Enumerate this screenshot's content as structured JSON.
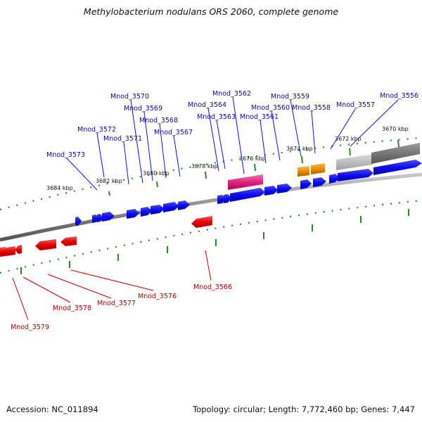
{
  "title": "Methylobacterium nodulans ORS 2060, complete genome",
  "footer": {
    "accession": "Accession: NC_011894",
    "stats": "Topology: circular; Length: 7,772,460 bp; Genes: 7,447"
  },
  "colors": {
    "forward_gene": "#1010ee",
    "reverse_gene": "#ee0000",
    "pink_feature": "#e0207f",
    "orange_feature": "#f08c00",
    "backbone": "#777777",
    "tick": "#2a8a2a",
    "forward_label": "#0a0aa0",
    "reverse_label": "#b00000"
  },
  "kbp_labels": [
    "3684 kbp",
    "3682 kbp",
    "3680 kbp",
    "3678 kbp",
    "3676 kbp",
    "3674 kbp",
    "3672 kbp",
    "3670 kbp"
  ],
  "forward_genes": [
    "Mnod_3573",
    "Mnod_3572",
    "Mnod_3571",
    "Mnod_3570",
    "Mnod_3569",
    "Mnod_3568",
    "Mnod_3567",
    "Mnod_3564",
    "Mnod_3563",
    "Mnod_3562",
    "Mnod_3561",
    "Mnod_3560",
    "Mnod_3559",
    "Mnod_3558",
    "Mnod_3557",
    "Mnod_3556"
  ],
  "reverse_genes": [
    "Mnod_3566",
    "Mnod_3576",
    "Mnod_3577",
    "Mnod_3578",
    "Mnod_3579"
  ]
}
